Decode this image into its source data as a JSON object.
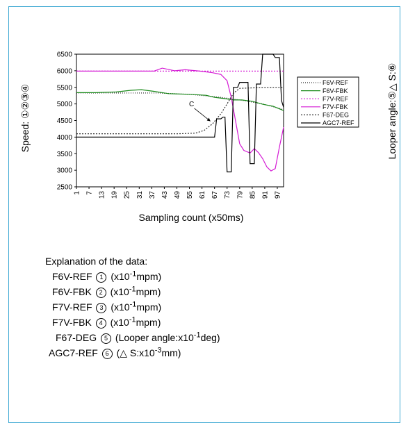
{
  "chart_data": {
    "type": "line",
    "xlabel": "Sampling count (x50ms)",
    "ylabel": "Speed: ①②③④",
    "y2label": "Looper angle:⑤△ S:⑥",
    "x_ticks": [
      "1",
      "7",
      "13",
      "19",
      "25",
      "31",
      "37",
      "43",
      "49",
      "55",
      "61",
      "67",
      "73",
      "79",
      "85",
      "91",
      "97"
    ],
    "y_ticks": [
      2500,
      3000,
      3500,
      4000,
      4500,
      5000,
      5500,
      6000,
      6500
    ],
    "xlim": [
      1,
      100
    ],
    "ylim": [
      2500,
      6500
    ],
    "annotation": "C",
    "legend_position": "right",
    "series": [
      {
        "name": "F6V-REF",
        "color": "#2a2a2a",
        "dash": "1,2",
        "points": [
          [
            1,
            5330
          ],
          [
            40,
            5330
          ],
          [
            55,
            5290
          ],
          [
            70,
            5200
          ],
          [
            80,
            5110
          ],
          [
            90,
            5000
          ],
          [
            100,
            4830
          ]
        ]
      },
      {
        "name": "F6V-FBK",
        "color": "#1a8a1a",
        "dash": "",
        "points": [
          [
            1,
            5340
          ],
          [
            10,
            5340
          ],
          [
            20,
            5360
          ],
          [
            27,
            5410
          ],
          [
            32,
            5430
          ],
          [
            38,
            5380
          ],
          [
            45,
            5310
          ],
          [
            55,
            5290
          ],
          [
            63,
            5260
          ],
          [
            67,
            5200
          ],
          [
            72,
            5160
          ],
          [
            76,
            5120
          ],
          [
            80,
            5120
          ],
          [
            85,
            5080
          ],
          [
            90,
            4990
          ],
          [
            95,
            4930
          ],
          [
            100,
            4800
          ]
        ]
      },
      {
        "name": "F7V-REF",
        "color": "#d41ad4",
        "dash": "2,2",
        "points": [
          [
            1,
            5990
          ],
          [
            40,
            5990
          ],
          [
            60,
            5990
          ],
          [
            80,
            5990
          ],
          [
            100,
            5990
          ]
        ]
      },
      {
        "name": "F7V-FBK",
        "color": "#d41ad4",
        "dash": "",
        "points": [
          [
            1,
            5990
          ],
          [
            38,
            5990
          ],
          [
            42,
            6080
          ],
          [
            48,
            6000
          ],
          [
            53,
            6030
          ],
          [
            60,
            5990
          ],
          [
            66,
            5940
          ],
          [
            70,
            5890
          ],
          [
            73,
            5700
          ],
          [
            75,
            5200
          ],
          [
            77,
            4500
          ],
          [
            79,
            3800
          ],
          [
            81,
            3600
          ],
          [
            84,
            3520
          ],
          [
            86,
            3650
          ],
          [
            88,
            3530
          ],
          [
            90,
            3350
          ],
          [
            92,
            3100
          ],
          [
            94,
            2980
          ],
          [
            96,
            3050
          ],
          [
            98,
            3700
          ],
          [
            100,
            4300
          ]
        ]
      },
      {
        "name": "F67-DEG",
        "color": "#2a2a2a",
        "dash": "2,2",
        "points": [
          [
            1,
            4100
          ],
          [
            50,
            4100
          ],
          [
            58,
            4120
          ],
          [
            62,
            4200
          ],
          [
            66,
            4400
          ],
          [
            70,
            4700
          ],
          [
            73,
            5000
          ],
          [
            76,
            5320
          ],
          [
            79,
            5470
          ],
          [
            88,
            5490
          ],
          [
            95,
            5500
          ],
          [
            100,
            5500
          ]
        ]
      },
      {
        "name": "AGC7-REF",
        "color": "#000000",
        "dash": "",
        "points": [
          [
            1,
            4000
          ],
          [
            67,
            4000
          ],
          [
            68,
            4550
          ],
          [
            70,
            4550
          ],
          [
            71,
            4600
          ],
          [
            72,
            4600
          ],
          [
            73,
            2950
          ],
          [
            75,
            2950
          ],
          [
            76,
            5500
          ],
          [
            78,
            5500
          ],
          [
            79,
            5650
          ],
          [
            83,
            5650
          ],
          [
            84,
            3200
          ],
          [
            86,
            3200
          ],
          [
            87,
            5600
          ],
          [
            89,
            5600
          ],
          [
            90,
            6500
          ],
          [
            95,
            6500
          ],
          [
            96,
            6400
          ],
          [
            98,
            6400
          ],
          [
            99,
            5100
          ],
          [
            100,
            4900
          ]
        ]
      }
    ]
  },
  "explanation": {
    "title": "Explanation of the data:",
    "rows": [
      {
        "name": "F6V-REF",
        "circle": "1",
        "pre": "(x10",
        "exp": "-1",
        "post": "mpm)"
      },
      {
        "name": "F6V-FBK",
        "circle": "2",
        "pre": "(x10",
        "exp": "-1",
        "post": "mpm)"
      },
      {
        "name": "F7V-REF",
        "circle": "3",
        "pre": "(x10",
        "exp": "-1",
        "post": "mpm)"
      },
      {
        "name": "F7V-FBK",
        "circle": "4",
        "pre": "(x10",
        "exp": "-1",
        "post": "mpm)"
      },
      {
        "name": "F67-DEG",
        "circle": "5",
        "pre": "(Looper angle:x10",
        "exp": "-1",
        "post": "deg)"
      },
      {
        "name": "AGC7-REF",
        "circle": "6",
        "pre": "(△ S:x10",
        "exp": "-3",
        "post": "mm)"
      }
    ]
  }
}
